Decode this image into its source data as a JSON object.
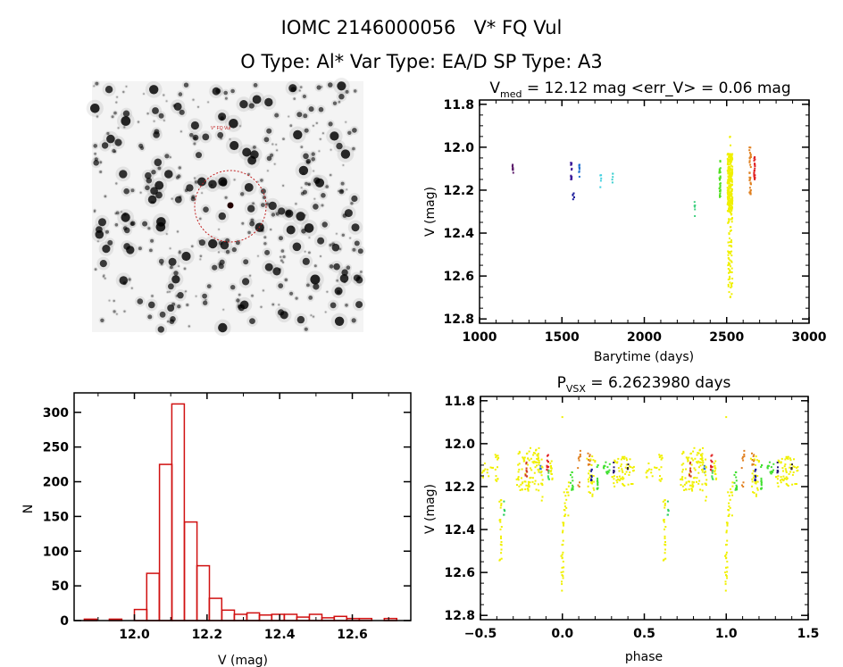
{
  "header": {
    "title_line1": "IOMC 2146000056   V* FQ Vul",
    "title_line2": "O Type: Al*  Var Type: EA/D  SP Type: A3"
  },
  "finder_image": {
    "label": "V* FQ Vul",
    "circle_color": "#c02020"
  },
  "chart_data": [
    {
      "id": "light_curve",
      "type": "scatter",
      "title_main": "V",
      "title_sub": "med",
      "title_rest": " = 12.12 mag <err_V> = 0.06 mag",
      "xlabel": "Barytime (days)",
      "ylabel": "V (mag)",
      "xlim": [
        1000,
        3000
      ],
      "ylim": [
        11.78,
        12.82
      ],
      "y_inverted": true,
      "xticks": [
        1000,
        1500,
        2000,
        2500,
        3000
      ],
      "xtick_labels": [
        "1000",
        "1500",
        "2000",
        "2500",
        "3000"
      ],
      "x_minor": 100,
      "yticks": [
        11.8,
        12.0,
        12.2,
        12.4,
        12.6,
        12.8
      ],
      "ytick_labels": [
        "11.8",
        "12.0",
        "12.2",
        "12.4",
        "12.6",
        "12.8"
      ],
      "y_minor": 0.05,
      "clusters": [
        {
          "x": [
            1200,
            1205
          ],
          "y": [
            12.08,
            12.125
          ],
          "n": 10,
          "color": "#5a1a6a"
        },
        {
          "x": [
            1553,
            1560
          ],
          "y": [
            12.07,
            12.15
          ],
          "n": 14,
          "color": "#3a1a9a"
        },
        {
          "x": [
            1565,
            1575
          ],
          "y": [
            12.2,
            12.245
          ],
          "n": 6,
          "color": "#1a1a9a"
        },
        {
          "x": [
            1603,
            1609
          ],
          "y": [
            12.075,
            12.14
          ],
          "n": 10,
          "color": "#2070d0"
        },
        {
          "x": [
            1733,
            1738
          ],
          "y": [
            12.115,
            12.2
          ],
          "n": 5,
          "color": "#40d0e0"
        },
        {
          "x": [
            1805,
            1810
          ],
          "y": [
            12.12,
            12.17
          ],
          "n": 5,
          "color": "#40d0d0"
        },
        {
          "x": [
            2302,
            2308
          ],
          "y": [
            12.255,
            12.35
          ],
          "n": 6,
          "color": "#40d080"
        },
        {
          "x": [
            2455,
            2463
          ],
          "y": [
            12.06,
            12.25
          ],
          "n": 30,
          "color": "#50e020"
        },
        {
          "x": [
            2505,
            2535
          ],
          "y": [
            12.03,
            12.3
          ],
          "n": 260,
          "color": "#f0f000"
        },
        {
          "x": [
            2508,
            2535
          ],
          "y": [
            12.3,
            12.7
          ],
          "n": 70,
          "color": "#f0f000"
        },
        {
          "x": [
            2515,
            2525
          ],
          "y": [
            11.87,
            12.0
          ],
          "n": 3,
          "color": "#f0f000"
        },
        {
          "x": [
            2638,
            2648
          ],
          "y": [
            12.0,
            12.22
          ],
          "n": 35,
          "color": "#e08020"
        },
        {
          "x": [
            2666,
            2672
          ],
          "y": [
            12.04,
            12.15
          ],
          "n": 22,
          "color": "#e02020"
        }
      ]
    },
    {
      "id": "histogram",
      "type": "bar",
      "title": "",
      "xlabel": "V (mag)",
      "ylabel": "N",
      "xlim": [
        11.834,
        12.761
      ],
      "ylim": [
        0,
        328
      ],
      "xticks": [
        12.0,
        12.2,
        12.4,
        12.6
      ],
      "xtick_labels": [
        "12.0",
        "12.2",
        "12.4",
        "12.6"
      ],
      "x_minor": 0.1,
      "yticks": [
        0,
        50,
        100,
        150,
        200,
        250,
        300
      ],
      "ytick_labels": [
        "0",
        "50",
        "100",
        "150",
        "200",
        "250",
        "300"
      ],
      "bin_width": 0.0344,
      "bin_starts": [
        11.862,
        11.896,
        11.931,
        11.965,
        12.0,
        12.034,
        12.069,
        12.103,
        12.138,
        12.172,
        12.206,
        12.241,
        12.275,
        12.31,
        12.344,
        12.378,
        12.413,
        12.447,
        12.482,
        12.516,
        12.55,
        12.585,
        12.619,
        12.654,
        12.688
      ],
      "values": [
        2,
        0,
        2,
        0,
        16,
        68,
        225,
        312,
        142,
        79,
        32,
        15,
        9,
        11,
        8,
        9,
        9,
        5,
        9,
        4,
        6,
        3,
        3,
        0,
        3
      ],
      "color": "#d01010"
    },
    {
      "id": "phase_curve",
      "type": "scatter",
      "title_main": "P",
      "title_sub": "VSX",
      "title_rest": " = 6.2623980 days",
      "xlabel": "phase",
      "ylabel": "V (mag)",
      "xlim": [
        -0.5,
        1.5
      ],
      "ylim": [
        11.78,
        12.82
      ],
      "y_inverted": true,
      "xticks": [
        -0.5,
        0.0,
        0.5,
        1.0,
        1.5
      ],
      "xtick_labels": [
        "−0.5",
        "0.0",
        "0.5",
        "1.0",
        "1.5"
      ],
      "x_minor": 0.1,
      "yticks": [
        11.8,
        12.0,
        12.2,
        12.4,
        12.6,
        12.8
      ],
      "ytick_labels": [
        "11.8",
        "12.0",
        "12.2",
        "12.4",
        "12.6",
        "12.8"
      ],
      "y_minor": 0.05,
      "period_repeat": 1,
      "clusters": [
        {
          "x": [
            -0.5,
            -0.42
          ],
          "y": [
            12.09,
            12.16
          ],
          "n": 14,
          "color": "#f0f000"
        },
        {
          "x": [
            -0.41,
            -0.39
          ],
          "y": [
            12.05,
            12.2
          ],
          "n": 14,
          "color": "#f0f000"
        },
        {
          "x": [
            -0.385,
            -0.37
          ],
          "y": [
            12.25,
            12.55
          ],
          "n": 22,
          "color": "#f0f000"
        },
        {
          "x": [
            -0.358,
            -0.352
          ],
          "y": [
            12.26,
            12.35
          ],
          "n": 6,
          "color": "#30d060"
        },
        {
          "x": [
            -0.28,
            -0.14
          ],
          "y": [
            12.02,
            12.22
          ],
          "n": 90,
          "color": "#f0f000"
        },
        {
          "x": [
            -0.225,
            -0.215
          ],
          "y": [
            12.08,
            12.16
          ],
          "n": 10,
          "color": "#d04020"
        },
        {
          "x": [
            -0.138,
            -0.13
          ],
          "y": [
            12.1,
            12.14
          ],
          "n": 5,
          "color": "#2070d0"
        },
        {
          "x": [
            -0.13,
            -0.12
          ],
          "y": [
            12.05,
            12.27
          ],
          "n": 12,
          "color": "#f0f000"
        },
        {
          "x": [
            -0.095,
            -0.085
          ],
          "y": [
            12.04,
            12.13
          ],
          "n": 12,
          "color": "#e02020"
        },
        {
          "x": [
            -0.088,
            -0.08
          ],
          "y": [
            12.12,
            12.17
          ],
          "n": 6,
          "color": "#40e060"
        },
        {
          "x": [
            -0.075,
            -0.06
          ],
          "y": [
            12.08,
            12.17
          ],
          "n": 12,
          "color": "#f0f000"
        },
        {
          "x": [
            -0.007,
            0.008
          ],
          "y": [
            12.35,
            12.7
          ],
          "n": 25,
          "color": "#f0f000"
        },
        {
          "x": [
            -0.002,
            0.002
          ],
          "y": [
            11.87,
            11.88
          ],
          "n": 1,
          "color": "#f0f000"
        },
        {
          "x": [
            0.01,
            0.04
          ],
          "y": [
            12.18,
            12.35
          ],
          "n": 18,
          "color": "#f0f000"
        },
        {
          "x": [
            0.05,
            0.065
          ],
          "y": [
            12.12,
            12.22
          ],
          "n": 12,
          "color": "#40e030"
        },
        {
          "x": [
            0.095,
            0.11
          ],
          "y": [
            12.03,
            12.22
          ],
          "n": 10,
          "color": "#e08020"
        },
        {
          "x": [
            0.155,
            0.175
          ],
          "y": [
            12.0,
            12.1
          ],
          "n": 10,
          "color": "#e08020"
        },
        {
          "x": [
            0.15,
            0.2
          ],
          "y": [
            12.05,
            12.25
          ],
          "n": 30,
          "color": "#f0f000"
        },
        {
          "x": [
            0.175,
            0.18
          ],
          "y": [
            12.12,
            12.24
          ],
          "n": 8,
          "color": "#1a1a9a"
        },
        {
          "x": [
            0.212,
            0.22
          ],
          "y": [
            12.1,
            12.25
          ],
          "n": 12,
          "color": "#40e030"
        },
        {
          "x": [
            0.25,
            0.29
          ],
          "y": [
            12.08,
            12.14
          ],
          "n": 14,
          "color": "#40e030"
        },
        {
          "x": [
            0.29,
            0.44
          ],
          "y": [
            12.06,
            12.2
          ],
          "n": 60,
          "color": "#f0f000"
        },
        {
          "x": [
            0.312,
            0.316
          ],
          "y": [
            12.08,
            12.14
          ],
          "n": 6,
          "color": "#2a1a7a"
        },
        {
          "x": [
            0.398,
            0.402
          ],
          "y": [
            12.09,
            12.12
          ],
          "n": 4,
          "color": "#3a2a2a"
        }
      ]
    }
  ]
}
